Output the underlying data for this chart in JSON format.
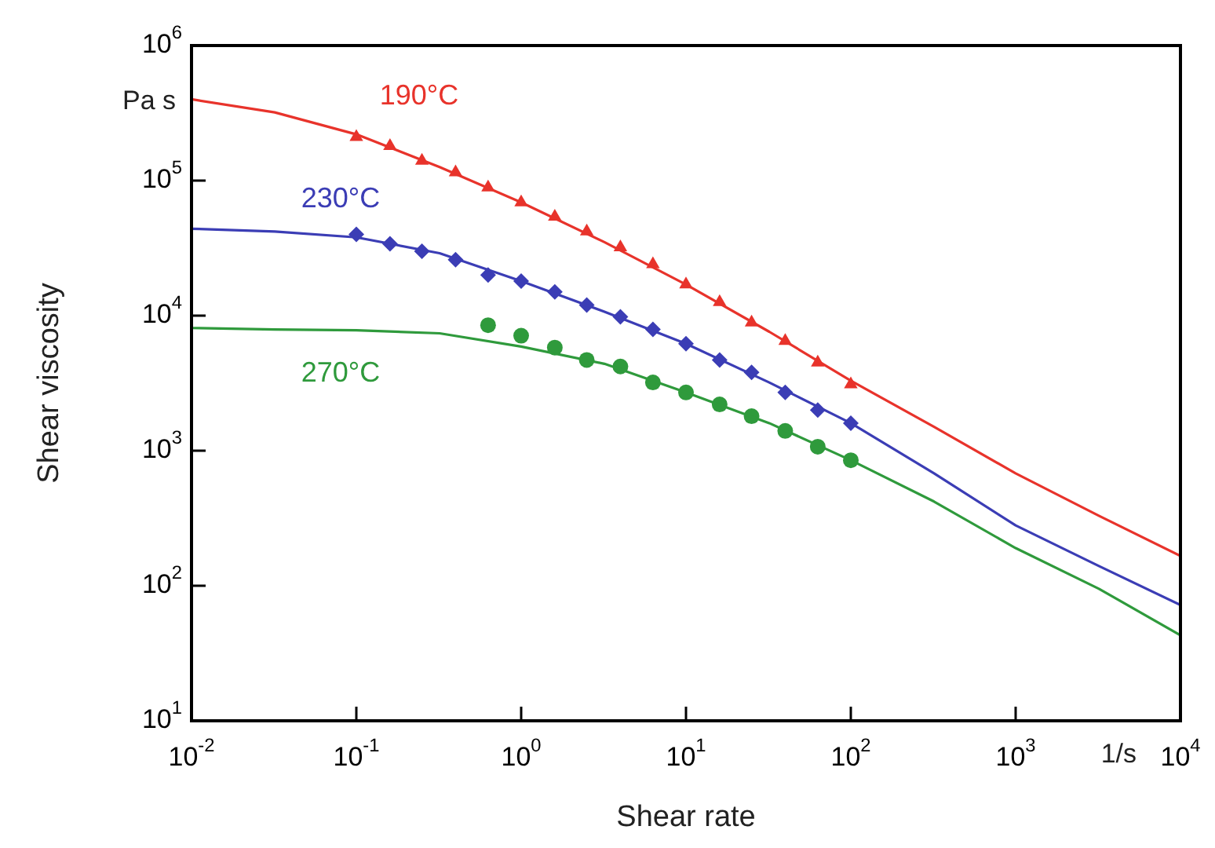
{
  "chart_data": {
    "type": "line",
    "xlabel": "Shear rate",
    "ylabel": "Shear viscosity",
    "log": "xy",
    "grid": false,
    "legend": false,
    "xlim": [
      0.01,
      10000
    ],
    "xticks": [
      {
        "value": 0.01,
        "label": "10$^{-2}$"
      },
      {
        "value": 0.1,
        "label": "10$^{-1}$"
      },
      {
        "value": 1,
        "label": "10$^{0}$"
      },
      {
        "value": 10,
        "label": "10$^{1}$"
      },
      {
        "value": 100,
        "label": "10$^{2}$"
      },
      {
        "value": 1000,
        "label": "10$^{3}$"
      },
      {
        "value": 10000,
        "label": "10$^{4}$"
      }
    ],
    "ylim": [
      10,
      1000000
    ],
    "yticks": [
      {
        "value": 10,
        "label": "10$^{1}$"
      },
      {
        "value": 100,
        "label": "10$^{2}$"
      },
      {
        "value": 1000,
        "label": "10$^{3}$"
      },
      {
        "value": 10000,
        "label": "10$^{4}$"
      },
      {
        "value": 100000,
        "label": "10$^{5}$"
      },
      {
        "value": 1000000,
        "label": "10$^{6}$"
      }
    ],
    "annotations": [
      "Pa s",
      "1/s"
    ],
    "series": [
      {
        "name": "190°C",
        "type": "line",
        "marker": "none",
        "color": "#e8332b",
        "x": [
          0.01,
          0.032,
          0.1,
          0.32,
          1,
          3.2,
          10,
          32,
          100,
          320,
          1000,
          3200,
          10000
        ],
        "values": [
          400000,
          320000,
          220000,
          126000,
          69000,
          35000,
          17000,
          7600,
          3300,
          1500,
          680,
          330,
          166
        ]
      },
      {
        "type": "scatter",
        "marker": "triangle",
        "color": "#e8332b",
        "x": [
          0.1,
          0.16,
          0.25,
          0.4,
          0.63,
          1,
          1.6,
          2.5,
          4,
          6.3,
          10,
          16,
          25,
          40,
          63,
          100
        ],
        "values": [
          210000,
          180000,
          140000,
          115000,
          89000,
          69000,
          54000,
          42000,
          32000,
          24000,
          17000,
          12600,
          8900,
          6500,
          4500,
          3100
        ]
      },
      {
        "name": "230°C",
        "type": "line",
        "marker": "none",
        "color": "#3b3db5",
        "x": [
          0.01,
          0.032,
          0.1,
          0.32,
          1,
          3.2,
          10,
          32,
          100,
          320,
          1000,
          3200,
          10000
        ],
        "values": [
          44000,
          42000,
          38000,
          29000,
          18000,
          10700,
          6200,
          3200,
          1600,
          680,
          280,
          140,
          72
        ]
      },
      {
        "type": "scatter",
        "marker": "diamond",
        "color": "#3b3db5",
        "x": [
          0.1,
          0.16,
          0.25,
          0.4,
          0.63,
          1,
          1.6,
          2.5,
          4,
          6.3,
          10,
          16,
          25,
          40,
          63,
          100
        ],
        "values": [
          40000,
          34000,
          30000,
          26000,
          20000,
          18000,
          15000,
          12000,
          9800,
          7900,
          6200,
          4700,
          3800,
          2700,
          2000,
          1600
        ]
      },
      {
        "name": "270°C",
        "type": "line",
        "marker": "none",
        "color": "#2f9a3c",
        "x": [
          0.01,
          0.032,
          0.1,
          0.32,
          1,
          3.2,
          10,
          32,
          100,
          320,
          1000,
          3200,
          10000
        ],
        "values": [
          8100,
          7900,
          7800,
          7400,
          5900,
          4400,
          2700,
          1600,
          850,
          420,
          190,
          95,
          43
        ]
      },
      {
        "type": "scatter",
        "marker": "circle",
        "color": "#2f9a3c",
        "x": [
          0.63,
          1,
          1.6,
          2.5,
          4,
          6.3,
          10,
          16,
          25,
          40,
          63,
          100
        ],
        "values": [
          8500,
          7100,
          5800,
          4700,
          4200,
          3200,
          2700,
          2200,
          1800,
          1400,
          1070,
          850
        ]
      }
    ]
  }
}
